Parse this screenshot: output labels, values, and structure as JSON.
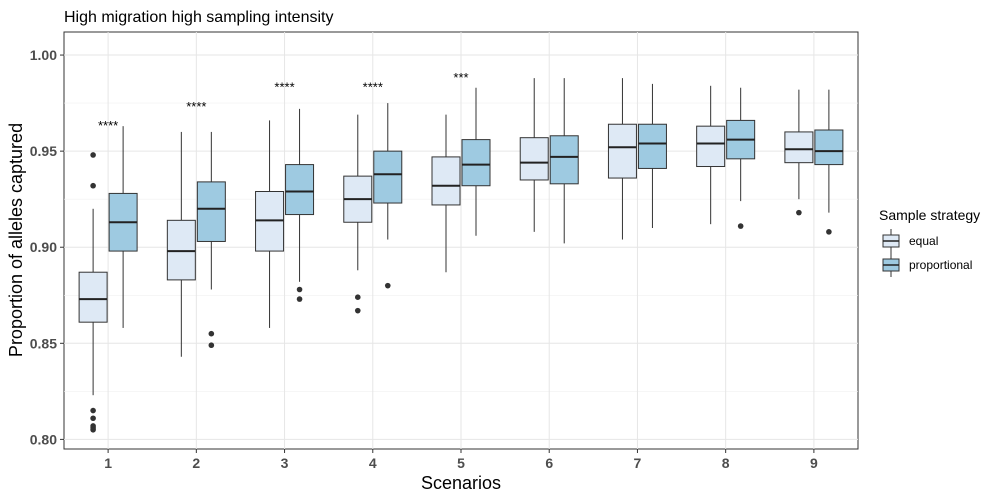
{
  "chart_data": {
    "type": "boxplot",
    "title": "High migration high sampling intensity",
    "xlabel": "Scenarios",
    "ylabel": "Proportion of alleles captured",
    "categories": [
      "1",
      "2",
      "3",
      "4",
      "5",
      "6",
      "7",
      "8",
      "9"
    ],
    "yticks": [
      "0.80",
      "0.85",
      "0.90",
      "0.95",
      "1.00"
    ],
    "ylim": [
      0.795,
      1.012
    ],
    "grid": true,
    "legend": {
      "title": "Sample strategy",
      "position": "right"
    },
    "colors": {
      "equal": "#dee9f5",
      "proportional": "#9ecae1",
      "outline": "#333333"
    },
    "series": [
      {
        "name": "equal",
        "boxes": [
          {
            "min": 0.823,
            "q1": 0.861,
            "median": 0.873,
            "q3": 0.887,
            "max": 0.92,
            "outliers": [
              0.948,
              0.932,
              0.815,
              0.811,
              0.807,
              0.806,
              0.805
            ]
          },
          {
            "min": 0.843,
            "q1": 0.883,
            "median": 0.898,
            "q3": 0.914,
            "max": 0.96,
            "outliers": []
          },
          {
            "min": 0.858,
            "q1": 0.898,
            "median": 0.914,
            "q3": 0.929,
            "max": 0.966,
            "outliers": []
          },
          {
            "min": 0.888,
            "q1": 0.913,
            "median": 0.925,
            "q3": 0.937,
            "max": 0.969,
            "outliers": [
              0.874,
              0.867
            ]
          },
          {
            "min": 0.887,
            "q1": 0.922,
            "median": 0.932,
            "q3": 0.947,
            "max": 0.969,
            "outliers": []
          },
          {
            "min": 0.908,
            "q1": 0.935,
            "median": 0.944,
            "q3": 0.957,
            "max": 0.988,
            "outliers": []
          },
          {
            "min": 0.904,
            "q1": 0.936,
            "median": 0.952,
            "q3": 0.964,
            "max": 0.988,
            "outliers": []
          },
          {
            "min": 0.912,
            "q1": 0.942,
            "median": 0.954,
            "q3": 0.963,
            "max": 0.984,
            "outliers": []
          },
          {
            "min": 0.925,
            "q1": 0.944,
            "median": 0.951,
            "q3": 0.96,
            "max": 0.982,
            "outliers": [
              0.918
            ]
          }
        ]
      },
      {
        "name": "proportional",
        "boxes": [
          {
            "min": 0.858,
            "q1": 0.898,
            "median": 0.913,
            "q3": 0.928,
            "max": 0.963,
            "outliers": []
          },
          {
            "min": 0.878,
            "q1": 0.903,
            "median": 0.92,
            "q3": 0.934,
            "max": 0.96,
            "outliers": [
              0.855,
              0.849
            ]
          },
          {
            "min": 0.882,
            "q1": 0.917,
            "median": 0.929,
            "q3": 0.943,
            "max": 0.972,
            "outliers": [
              0.878,
              0.873
            ]
          },
          {
            "min": 0.904,
            "q1": 0.923,
            "median": 0.938,
            "q3": 0.95,
            "max": 0.975,
            "outliers": [
              0.88
            ]
          },
          {
            "min": 0.906,
            "q1": 0.932,
            "median": 0.943,
            "q3": 0.956,
            "max": 0.983,
            "outliers": []
          },
          {
            "min": 0.902,
            "q1": 0.933,
            "median": 0.947,
            "q3": 0.958,
            "max": 0.988,
            "outliers": []
          },
          {
            "min": 0.91,
            "q1": 0.941,
            "median": 0.954,
            "q3": 0.964,
            "max": 0.985,
            "outliers": []
          },
          {
            "min": 0.924,
            "q1": 0.946,
            "median": 0.956,
            "q3": 0.966,
            "max": 0.983,
            "outliers": [
              0.911
            ]
          },
          {
            "min": 0.918,
            "q1": 0.943,
            "median": 0.95,
            "q3": 0.961,
            "max": 0.982,
            "outliers": [
              0.908
            ]
          }
        ]
      }
    ],
    "annotations": [
      {
        "category": "1",
        "text": "****",
        "y": 0.963
      },
      {
        "category": "2",
        "text": "****",
        "y": 0.973
      },
      {
        "category": "3",
        "text": "****",
        "y": 0.983
      },
      {
        "category": "4",
        "text": "****",
        "y": 0.983
      },
      {
        "category": "5",
        "text": "***",
        "y": 0.988
      }
    ]
  }
}
